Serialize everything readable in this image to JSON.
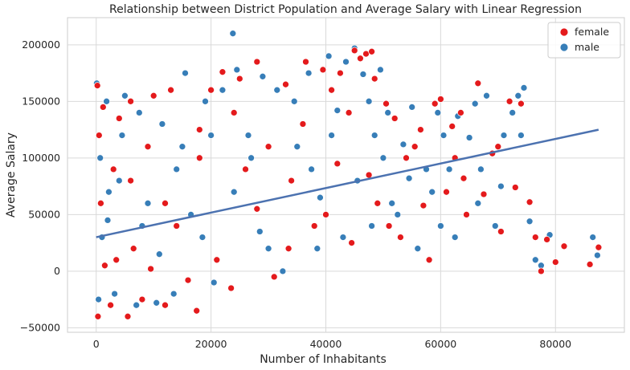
{
  "chart_data": {
    "type": "scatter",
    "title": "Relationship between District Population and Average Salary with Linear Regression",
    "xlabel": "Number of Inhabitants",
    "ylabel": "Average Salary",
    "xlim": [
      -5000,
      92000
    ],
    "ylim": [
      -54000,
      224000
    ],
    "x_ticks": [
      0,
      20000,
      40000,
      60000,
      80000
    ],
    "x_tick_labels": [
      "0",
      "20000",
      "40000",
      "60000",
      "80000"
    ],
    "y_ticks": [
      -50000,
      0,
      50000,
      100000,
      150000,
      200000
    ],
    "y_tick_labels": [
      "−50000",
      "0",
      "50000",
      "100000",
      "150000",
      "200000"
    ],
    "grid": true,
    "legend": {
      "position": "top-right",
      "entries": [
        "female",
        "male"
      ]
    },
    "colors": {
      "female": "#e41a1c",
      "male": "#377eb8",
      "regression": "#4c72b0",
      "grid": "#d9d9d9",
      "background": "#ffffff"
    },
    "series": [
      {
        "name": "female",
        "color": "#e41a1c",
        "points": [
          [
            200,
            164000
          ],
          [
            300,
            -40000
          ],
          [
            500,
            120000
          ],
          [
            800,
            60000
          ],
          [
            1200,
            145000
          ],
          [
            1500,
            5000
          ],
          [
            2500,
            -30000
          ],
          [
            3000,
            90000
          ],
          [
            4000,
            135000
          ],
          [
            5500,
            -40000
          ],
          [
            6000,
            150000
          ],
          [
            6500,
            20000
          ],
          [
            8000,
            -25000
          ],
          [
            9000,
            110000
          ],
          [
            10000,
            155000
          ],
          [
            12000,
            -30000
          ],
          [
            13000,
            160000
          ],
          [
            14000,
            40000
          ],
          [
            17500,
            -35000
          ],
          [
            18000,
            125000
          ],
          [
            20000,
            160000
          ],
          [
            22000,
            176000
          ],
          [
            23500,
            -15000
          ],
          [
            25000,
            170000
          ],
          [
            28000,
            185000
          ],
          [
            30000,
            110000
          ],
          [
            31000,
            -5000
          ],
          [
            33000,
            165000
          ],
          [
            36500,
            185000
          ],
          [
            38000,
            40000
          ],
          [
            39500,
            178000
          ],
          [
            41000,
            160000
          ],
          [
            42500,
            175000
          ],
          [
            44000,
            140000
          ],
          [
            45000,
            195000
          ],
          [
            46000,
            188000
          ],
          [
            47000,
            192000
          ],
          [
            48000,
            194000
          ],
          [
            48500,
            170000
          ],
          [
            49000,
            60000
          ],
          [
            50500,
            148000
          ],
          [
            52000,
            135000
          ],
          [
            53000,
            30000
          ],
          [
            54000,
            100000
          ],
          [
            55500,
            110000
          ],
          [
            56500,
            125000
          ],
          [
            58000,
            10000
          ],
          [
            59000,
            148000
          ],
          [
            60000,
            152000
          ],
          [
            61000,
            70000
          ],
          [
            62000,
            128000
          ],
          [
            63500,
            140000
          ],
          [
            64500,
            50000
          ],
          [
            66500,
            166000
          ],
          [
            67500,
            68000
          ],
          [
            69000,
            104000
          ],
          [
            70500,
            35000
          ],
          [
            72000,
            150000
          ],
          [
            73000,
            74000
          ],
          [
            74000,
            148000
          ],
          [
            75500,
            61000
          ],
          [
            76500,
            30000
          ],
          [
            77500,
            0
          ],
          [
            78500,
            28000
          ],
          [
            80000,
            8000
          ],
          [
            81500,
            22000
          ],
          [
            86000,
            6000
          ],
          [
            87500,
            21000
          ],
          [
            18000,
            100000
          ],
          [
            26000,
            90000
          ],
          [
            34000,
            80000
          ],
          [
            42000,
            95000
          ],
          [
            47500,
            85000
          ],
          [
            12000,
            60000
          ],
          [
            6000,
            80000
          ],
          [
            28000,
            55000
          ],
          [
            40000,
            50000
          ],
          [
            57000,
            58000
          ],
          [
            62500,
            100000
          ],
          [
            3500,
            10000
          ],
          [
            9500,
            2000
          ],
          [
            16000,
            -8000
          ],
          [
            21000,
            10000
          ],
          [
            33500,
            20000
          ],
          [
            44500,
            25000
          ],
          [
            51000,
            40000
          ],
          [
            64000,
            82000
          ],
          [
            70000,
            110000
          ],
          [
            24000,
            140000
          ],
          [
            36000,
            130000
          ]
        ]
      },
      {
        "name": "male",
        "color": "#377eb8",
        "points": [
          [
            100,
            166000
          ],
          [
            400,
            -25000
          ],
          [
            700,
            100000
          ],
          [
            1000,
            30000
          ],
          [
            1800,
            150000
          ],
          [
            2200,
            70000
          ],
          [
            3200,
            -20000
          ],
          [
            4500,
            120000
          ],
          [
            5000,
            155000
          ],
          [
            7000,
            -30000
          ],
          [
            7500,
            140000
          ],
          [
            9000,
            60000
          ],
          [
            10500,
            -28000
          ],
          [
            11500,
            130000
          ],
          [
            13500,
            -20000
          ],
          [
            15500,
            175000
          ],
          [
            16500,
            50000
          ],
          [
            19000,
            150000
          ],
          [
            20500,
            -10000
          ],
          [
            22000,
            160000
          ],
          [
            23800,
            210000
          ],
          [
            24500,
            178000
          ],
          [
            26500,
            120000
          ],
          [
            29000,
            172000
          ],
          [
            31500,
            160000
          ],
          [
            32500,
            0
          ],
          [
            34500,
            150000
          ],
          [
            37000,
            175000
          ],
          [
            38500,
            20000
          ],
          [
            40500,
            190000
          ],
          [
            42000,
            142000
          ],
          [
            43500,
            185000
          ],
          [
            45000,
            197000
          ],
          [
            46500,
            174000
          ],
          [
            47500,
            150000
          ],
          [
            48500,
            120000
          ],
          [
            49500,
            178000
          ],
          [
            50800,
            140000
          ],
          [
            51500,
            60000
          ],
          [
            53500,
            112000
          ],
          [
            55000,
            145000
          ],
          [
            56000,
            20000
          ],
          [
            57500,
            90000
          ],
          [
            59500,
            140000
          ],
          [
            60500,
            120000
          ],
          [
            62500,
            30000
          ],
          [
            63000,
            137000
          ],
          [
            65000,
            118000
          ],
          [
            66000,
            148000
          ],
          [
            67000,
            90000
          ],
          [
            68000,
            155000
          ],
          [
            69500,
            40000
          ],
          [
            71000,
            120000
          ],
          [
            72500,
            140000
          ],
          [
            73500,
            155000
          ],
          [
            74500,
            162000
          ],
          [
            75500,
            44000
          ],
          [
            76500,
            10000
          ],
          [
            77500,
            5000
          ],
          [
            79000,
            32000
          ],
          [
            86500,
            30000
          ],
          [
            87300,
            14000
          ],
          [
            14000,
            90000
          ],
          [
            24000,
            70000
          ],
          [
            35000,
            110000
          ],
          [
            45500,
            80000
          ],
          [
            52500,
            50000
          ],
          [
            58500,
            70000
          ],
          [
            8000,
            40000
          ],
          [
            18500,
            30000
          ],
          [
            28500,
            35000
          ],
          [
            39000,
            65000
          ],
          [
            48000,
            40000
          ],
          [
            61500,
            90000
          ],
          [
            4000,
            80000
          ],
          [
            30000,
            20000
          ],
          [
            20000,
            120000
          ],
          [
            41000,
            120000
          ],
          [
            54500,
            82000
          ],
          [
            66500,
            60000
          ],
          [
            2000,
            45000
          ],
          [
            11000,
            15000
          ],
          [
            27000,
            100000
          ],
          [
            43000,
            30000
          ],
          [
            50000,
            100000
          ],
          [
            60000,
            40000
          ],
          [
            70500,
            75000
          ],
          [
            15000,
            110000
          ],
          [
            37500,
            90000
          ],
          [
            74000,
            120000
          ]
        ]
      }
    ],
    "regression": {
      "x": [
        0,
        87500
      ],
      "y": [
        30000,
        125000
      ]
    }
  }
}
